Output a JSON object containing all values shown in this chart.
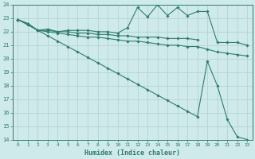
{
  "xlabel": "Humidex (Indice chaleur)",
  "background_color": "#ceeaea",
  "grid_color": "#b0d0d0",
  "line_color": "#2e7d6e",
  "xlim_min": -0.5,
  "xlim_max": 23.5,
  "ylim_min": 14,
  "ylim_max": 24,
  "xticks": [
    0,
    1,
    2,
    3,
    4,
    5,
    6,
    7,
    8,
    9,
    10,
    11,
    12,
    13,
    14,
    15,
    16,
    17,
    18,
    19,
    20,
    21,
    22,
    23
  ],
  "yticks": [
    14,
    15,
    16,
    17,
    18,
    19,
    20,
    21,
    22,
    23,
    24
  ],
  "series1_x": [
    0,
    1,
    2,
    3,
    4,
    5,
    6,
    7,
    8,
    9,
    10,
    11,
    12,
    13,
    14,
    15,
    16,
    17,
    18,
    19,
    20,
    21,
    22,
    23
  ],
  "series1_y": [
    22.9,
    22.6,
    22.1,
    22.2,
    22.0,
    22.1,
    22.1,
    22.1,
    22.0,
    22.0,
    21.9,
    22.3,
    23.8,
    23.1,
    24.0,
    23.2,
    23.8,
    23.2,
    23.5,
    23.5,
    21.2,
    21.2,
    21.2,
    21.0
  ],
  "series2_x": [
    0,
    1,
    2,
    3,
    4,
    5,
    6,
    7,
    8,
    9,
    10,
    11,
    12,
    13,
    14,
    15,
    16,
    17,
    18
  ],
  "series2_y": [
    22.9,
    22.6,
    22.1,
    22.1,
    22.0,
    22.0,
    21.9,
    21.9,
    21.8,
    21.8,
    21.7,
    21.7,
    21.6,
    21.6,
    21.6,
    21.5,
    21.5,
    21.5,
    21.4
  ],
  "series3_x": [
    0,
    1,
    2,
    3,
    4,
    5,
    6,
    7,
    8,
    9,
    10,
    11,
    12,
    13,
    14,
    15,
    16,
    17,
    18,
    19,
    20,
    21,
    22,
    23
  ],
  "series3_y": [
    22.9,
    22.5,
    22.1,
    21.7,
    21.3,
    20.9,
    20.5,
    20.1,
    19.7,
    19.3,
    18.9,
    18.5,
    18.1,
    17.7,
    17.3,
    16.9,
    16.5,
    16.1,
    15.7,
    19.8,
    18.0,
    15.5,
    14.2,
    14.0
  ],
  "series4_x": [
    0,
    1,
    2,
    3,
    4,
    5,
    6,
    7,
    8,
    9,
    10,
    11,
    12,
    13,
    14,
    15,
    16,
    17,
    18,
    19,
    20,
    21,
    22,
    23
  ],
  "series4_y": [
    22.9,
    22.6,
    22.1,
    22.0,
    21.9,
    21.8,
    21.7,
    21.6,
    21.6,
    21.5,
    21.4,
    21.3,
    21.3,
    21.2,
    21.1,
    21.0,
    21.0,
    20.9,
    20.9,
    20.7,
    20.5,
    20.4,
    20.3,
    20.2
  ]
}
